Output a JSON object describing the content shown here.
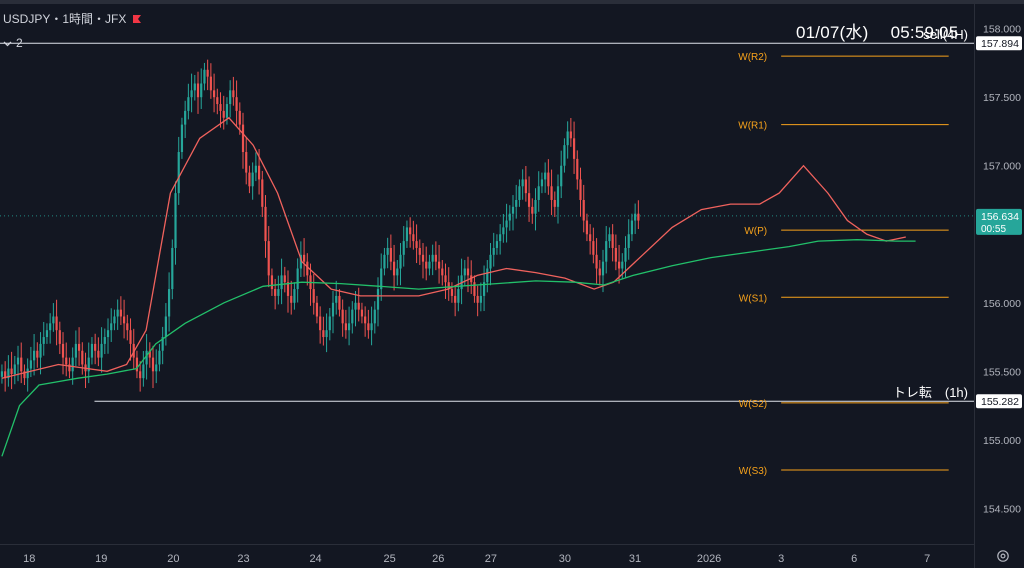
{
  "header": {
    "symbol_line": "USDJPY・1時間・JFX",
    "indicator_toggle": "2",
    "clock": "01/07(水)　 05:59:05"
  },
  "colors": {
    "background": "#131722",
    "bull": "#26a69a",
    "bear": "#ef5350",
    "ma_fast": "#f0625d",
    "ma_slow": "#22c06a",
    "pivot": "#f7a21b",
    "level": "#e0e3eb",
    "axis_text": "#b2b5be",
    "badge_current": "#26a69a",
    "flag": "#f23645"
  },
  "chart_data": {
    "type": "candlestick",
    "title": "",
    "symbol": "USDJPY",
    "interval": "1時間",
    "source": "JFX",
    "ylim": [
      154.24,
      158.18
    ],
    "y_ticks": [
      158.0,
      157.5,
      157.0,
      156.0,
      155.5,
      155.0,
      154.5
    ],
    "y_tick_labels": [
      "158.000",
      "157.500",
      "157.000",
      "156.000",
      "155.500",
      "155.000",
      "154.500"
    ],
    "x_range": [
      0,
      1000
    ],
    "x_ticks": [
      {
        "x": 30,
        "label": "18"
      },
      {
        "x": 104,
        "label": "19"
      },
      {
        "x": 178,
        "label": "20"
      },
      {
        "x": 250,
        "label": "23"
      },
      {
        "x": 324,
        "label": "24"
      },
      {
        "x": 400,
        "label": "25"
      },
      {
        "x": 450,
        "label": "26"
      },
      {
        "x": 504,
        "label": "27"
      },
      {
        "x": 580,
        "label": "30"
      },
      {
        "x": 652,
        "label": "31"
      },
      {
        "x": 728,
        "label": "2026"
      },
      {
        "x": 802,
        "label": "3"
      },
      {
        "x": 877,
        "label": "6"
      },
      {
        "x": 952,
        "label": "7"
      }
    ],
    "candles": {
      "x_start": 2,
      "x_step": 3.3,
      "closes": [
        155.5,
        155.45,
        155.52,
        155.48,
        155.55,
        155.6,
        155.5,
        155.45,
        155.52,
        155.58,
        155.65,
        155.6,
        155.7,
        155.75,
        155.8,
        155.85,
        155.9,
        155.8,
        155.7,
        155.6,
        155.55,
        155.5,
        155.6,
        155.7,
        155.65,
        155.55,
        155.5,
        155.6,
        155.7,
        155.65,
        155.6,
        155.7,
        155.75,
        155.8,
        155.85,
        155.9,
        155.95,
        155.9,
        155.85,
        155.8,
        155.7,
        155.6,
        155.5,
        155.45,
        155.55,
        155.65,
        155.6,
        155.5,
        155.55,
        155.65,
        155.75,
        155.9,
        156.1,
        156.4,
        156.8,
        157.1,
        157.3,
        157.4,
        157.5,
        157.55,
        157.6,
        157.5,
        157.6,
        157.7,
        157.65,
        157.55,
        157.5,
        157.45,
        157.4,
        157.35,
        157.45,
        157.55,
        157.5,
        157.4,
        157.3,
        157.1,
        156.95,
        156.85,
        156.95,
        157.0,
        156.9,
        156.7,
        156.45,
        156.2,
        156.1,
        156.05,
        156.1,
        156.2,
        156.15,
        156.05,
        156.0,
        156.1,
        156.25,
        156.35,
        156.3,
        156.2,
        156.1,
        156.0,
        155.9,
        155.8,
        155.75,
        155.8,
        155.9,
        156.0,
        156.05,
        155.95,
        155.85,
        155.8,
        155.85,
        155.95,
        156.0,
        155.95,
        155.9,
        155.85,
        155.8,
        155.85,
        155.95,
        156.1,
        156.25,
        156.35,
        156.4,
        156.3,
        156.2,
        156.25,
        156.35,
        156.45,
        156.55,
        156.5,
        156.45,
        156.4,
        156.35,
        156.3,
        156.25,
        156.3,
        156.35,
        156.3,
        156.25,
        156.2,
        156.15,
        156.1,
        156.05,
        156.0,
        156.1,
        156.2,
        156.25,
        156.2,
        156.15,
        156.05,
        156.0,
        156.05,
        156.15,
        156.25,
        156.35,
        156.4,
        156.45,
        156.5,
        156.55,
        156.6,
        156.65,
        156.7,
        156.75,
        156.85,
        156.9,
        156.8,
        156.7,
        156.65,
        156.75,
        156.85,
        156.9,
        156.95,
        156.85,
        156.75,
        156.7,
        156.85,
        157.0,
        157.15,
        157.25,
        157.2,
        157.05,
        156.9,
        156.75,
        156.6,
        156.5,
        156.45,
        156.35,
        156.25,
        156.2,
        156.3,
        156.45,
        156.5,
        156.4,
        156.3,
        156.25,
        156.3,
        156.4,
        156.5,
        156.6,
        156.65,
        156.6
      ]
    },
    "series": [
      {
        "name": "",
        "color": "#f0625d",
        "points": [
          [
            2,
            155.45
          ],
          [
            60,
            155.55
          ],
          [
            110,
            155.5
          ],
          [
            130,
            155.55
          ],
          [
            150,
            155.8
          ],
          [
            175,
            156.8
          ],
          [
            205,
            157.2
          ],
          [
            235,
            157.35
          ],
          [
            260,
            157.15
          ],
          [
            285,
            156.8
          ],
          [
            310,
            156.3
          ],
          [
            340,
            156.1
          ],
          [
            370,
            156.05
          ],
          [
            400,
            156.05
          ],
          [
            430,
            156.05
          ],
          [
            460,
            156.1
          ],
          [
            490,
            156.2
          ],
          [
            520,
            156.25
          ],
          [
            550,
            156.22
          ],
          [
            580,
            156.18
          ],
          [
            610,
            156.1
          ],
          [
            630,
            156.15
          ],
          [
            660,
            156.35
          ],
          [
            690,
            156.55
          ],
          [
            720,
            156.68
          ],
          [
            750,
            156.72
          ],
          [
            780,
            156.72
          ],
          [
            800,
            156.8
          ],
          [
            825,
            157.0
          ],
          [
            850,
            156.8
          ],
          [
            870,
            156.6
          ],
          [
            890,
            156.5
          ],
          [
            910,
            156.45
          ],
          [
            930,
            156.48
          ]
        ]
      },
      {
        "name": "",
        "color": "#22c06a",
        "points": [
          [
            2,
            154.88
          ],
          [
            20,
            155.25
          ],
          [
            40,
            155.4
          ],
          [
            80,
            155.45
          ],
          [
            110,
            155.48
          ],
          [
            140,
            155.52
          ],
          [
            160,
            155.7
          ],
          [
            190,
            155.85
          ],
          [
            230,
            156.0
          ],
          [
            270,
            156.12
          ],
          [
            310,
            156.15
          ],
          [
            350,
            156.14
          ],
          [
            390,
            156.12
          ],
          [
            430,
            156.1
          ],
          [
            470,
            156.12
          ],
          [
            510,
            156.14
          ],
          [
            550,
            156.16
          ],
          [
            590,
            156.15
          ],
          [
            620,
            156.13
          ],
          [
            650,
            156.2
          ],
          [
            690,
            156.27
          ],
          [
            730,
            156.33
          ],
          [
            770,
            156.37
          ],
          [
            810,
            156.41
          ],
          [
            840,
            156.45
          ],
          [
            880,
            156.46
          ],
          [
            920,
            156.45
          ],
          [
            940,
            156.45
          ]
        ]
      }
    ],
    "horizontal_levels": [
      {
        "value": 157.894,
        "label": "sell(4H)",
        "badge": "157.894",
        "x_from": 0,
        "color": "#e0e3eb",
        "style": "solid",
        "label_color": "#ffffff"
      },
      {
        "value": 155.282,
        "label": "トレ転　(1h)",
        "badge": "155.282",
        "x_from": 97,
        "color": "#e0e3eb",
        "style": "solid",
        "label_color": "#ffffff"
      },
      {
        "value": 156.634,
        "label": "",
        "badge": "156.634",
        "badge_sub": "00:55",
        "x_from": 0,
        "color": "#26a69a",
        "style": "dotted",
        "badge_color": "#26a69a"
      }
    ],
    "pivot_levels": [
      {
        "label": "W(R2)",
        "value": 157.8
      },
      {
        "label": "W(R1)",
        "value": 157.3
      },
      {
        "label": "W(P)",
        "value": 156.53
      },
      {
        "label": "W(S1)",
        "value": 156.04
      },
      {
        "label": "W(S2)",
        "value": 155.27
      },
      {
        "label": "W(S3)",
        "value": 154.78
      }
    ],
    "pivot_x_range": [
      802,
      974
    ],
    "grid": false,
    "legend": "none"
  }
}
